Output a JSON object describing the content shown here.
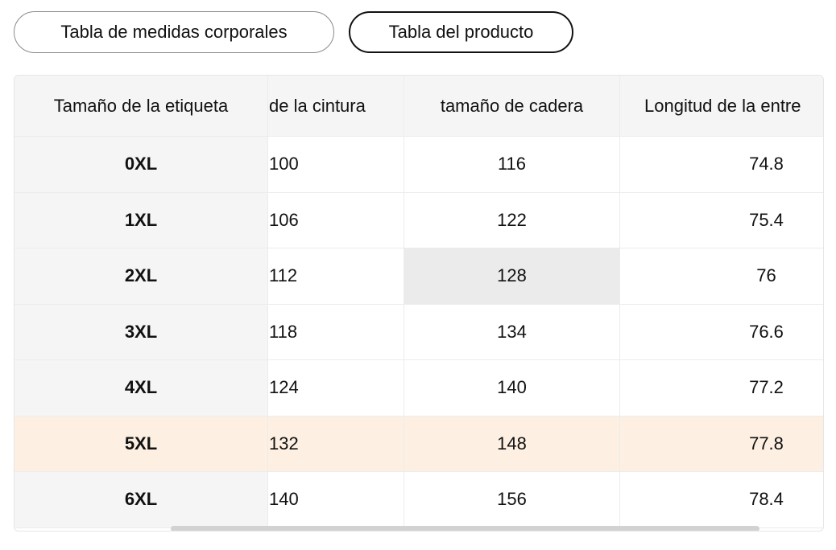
{
  "tabs": [
    "Tabla de medidas corporales",
    "Tabla del producto"
  ],
  "table": {
    "headers": [
      "Tamaño de la etiqueta",
      "de la cintura",
      "tamaño de cadera",
      "Longitud de la entre"
    ],
    "rows": [
      [
        "0XL",
        100,
        116,
        74.8
      ],
      [
        "1XL",
        106,
        122,
        75.4
      ],
      [
        "2XL",
        112,
        128,
        76
      ],
      [
        "3XL",
        118,
        134,
        76.6
      ],
      [
        "4XL",
        124,
        140,
        77.2
      ],
      [
        "5XL",
        132,
        148,
        77.8
      ],
      [
        "6XL",
        140,
        156,
        78.4
      ]
    ]
  }
}
